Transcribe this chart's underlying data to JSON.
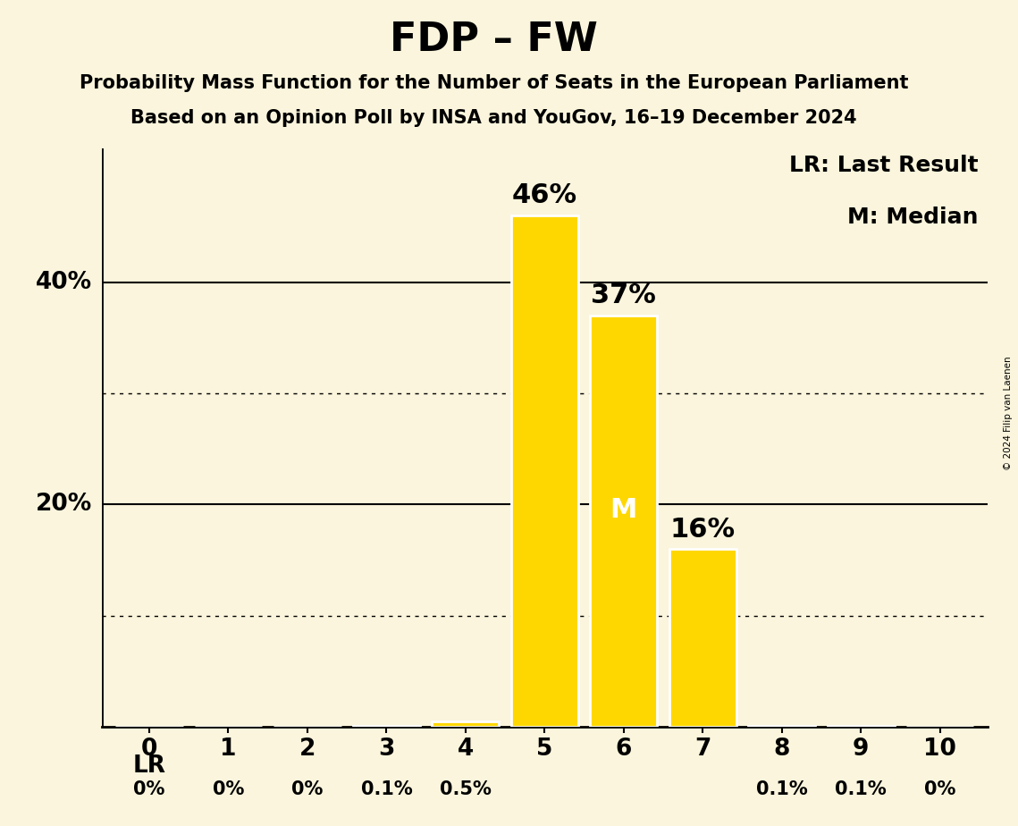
{
  "title": "FDP – FW",
  "subtitle1": "Probability Mass Function for the Number of Seats in the European Parliament",
  "subtitle2": "Based on an Opinion Poll by INSA and YouGov, 16–19 December 2024",
  "copyright": "© 2024 Filip van Laenen",
  "seats": [
    0,
    1,
    2,
    3,
    4,
    5,
    6,
    7,
    8,
    9,
    10
  ],
  "probabilities": [
    0.0,
    0.0,
    0.0,
    0.001,
    0.005,
    0.46,
    0.37,
    0.16,
    0.001,
    0.001,
    0.0
  ],
  "bar_labels": [
    "0%",
    "0%",
    "0%",
    "0.1%",
    "0.5%",
    "46%",
    "37%",
    "16%",
    "0.1%",
    "0.1%",
    "0%"
  ],
  "bar_color": "#FFD700",
  "background_color": "#FAF5DC",
  "median": 6,
  "last_result": 0,
  "ylim": [
    0,
    0.52
  ],
  "solid_gridlines": [
    0.2,
    0.4
  ],
  "dotted_gridlines": [
    0.1,
    0.3
  ],
  "legend_lr": "LR: Last Result",
  "legend_m": "M: Median",
  "lr_label": "LR",
  "title_fontsize": 32,
  "subtitle_fontsize": 15,
  "bar_label_large_fontsize": 22,
  "bar_label_small_fontsize": 15,
  "axis_tick_fontsize": 19,
  "ytick_labels_20_40": [
    "20%",
    "40%"
  ],
  "ytick_positions_20_40": [
    0.2,
    0.4
  ]
}
